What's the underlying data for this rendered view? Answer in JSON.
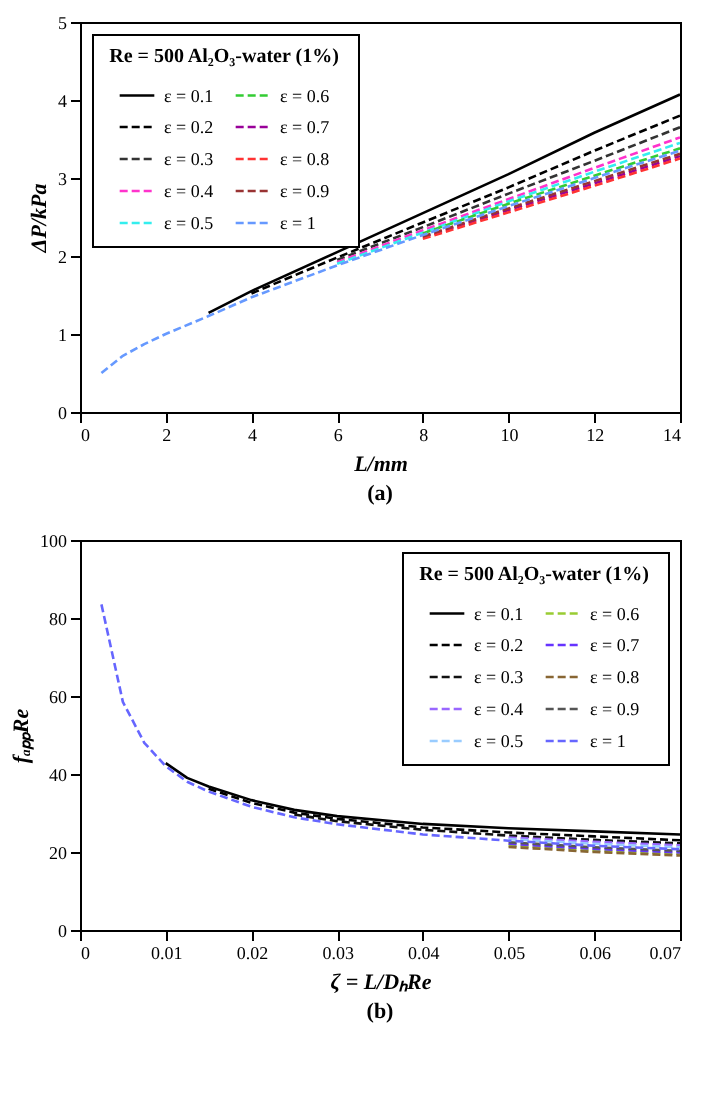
{
  "chart_data": [
    {
      "type": "line",
      "xlabel": "L/mm",
      "ylabel": "ΔP/kPa",
      "legend_title": "Re = 500   Al₂O₃-water (1%)",
      "legend": "top left",
      "annotations": [
        "(a)"
      ],
      "x": [
        0.5,
        1,
        1.5,
        2,
        3,
        4,
        6,
        8,
        10,
        12,
        14
      ],
      "xlim": [
        0,
        14
      ],
      "xticks": [
        0,
        2,
        4,
        6,
        8,
        10,
        12,
        14
      ],
      "ylim": [
        0,
        5
      ],
      "yticks": [
        0,
        1,
        2,
        3,
        4,
        5
      ],
      "series": [
        {
          "name": "ε = 0.1",
          "color": "#000000",
          "line_style": "solid",
          "values": [
            null,
            null,
            null,
            null,
            1.27,
            1.55,
            2.05,
            2.55,
            3.05,
            3.58,
            4.07
          ]
        },
        {
          "name": "ε = 0.2",
          "color": "#000000",
          "line_style": "dashed",
          "values": [
            null,
            null,
            null,
            null,
            null,
            1.52,
            1.98,
            2.43,
            2.88,
            3.35,
            3.8
          ]
        },
        {
          "name": "ε = 0.3",
          "color": "#333333",
          "line_style": "dashed",
          "values": [
            null,
            null,
            null,
            null,
            null,
            null,
            1.95,
            2.37,
            2.8,
            3.22,
            3.65
          ]
        },
        {
          "name": "ε = 0.4",
          "color": "#ff33cc",
          "line_style": "dashed",
          "values": [
            null,
            null,
            null,
            null,
            null,
            null,
            1.92,
            2.33,
            2.73,
            3.13,
            3.52
          ]
        },
        {
          "name": "ε = 0.5",
          "color": "#33eeee",
          "line_style": "dashed",
          "values": [
            null,
            null,
            null,
            null,
            null,
            null,
            1.9,
            2.3,
            2.7,
            3.08,
            3.45
          ]
        },
        {
          "name": "ε = 0.6",
          "color": "#33cc33",
          "line_style": "dashed",
          "values": [
            null,
            null,
            null,
            null,
            null,
            null,
            null,
            2.29,
            2.67,
            3.03,
            3.38
          ]
        },
        {
          "name": "ε = 0.7",
          "color": "#990099",
          "line_style": "dashed",
          "values": [
            null,
            null,
            null,
            null,
            null,
            null,
            null,
            2.24,
            2.59,
            2.93,
            3.28
          ]
        },
        {
          "name": "ε = 0.8",
          "color": "#ff3333",
          "line_style": "dashed",
          "values": [
            null,
            null,
            null,
            null,
            null,
            null,
            null,
            2.22,
            2.56,
            2.9,
            3.25
          ]
        },
        {
          "name": "ε = 0.9",
          "color": "#993333",
          "line_style": "dashed",
          "values": [
            null,
            null,
            null,
            null,
            null,
            null,
            null,
            2.25,
            2.61,
            2.96,
            3.31
          ]
        },
        {
          "name": "ε = 1",
          "color": "#6699ff",
          "line_style": "dashed",
          "values": [
            0.5,
            0.72,
            0.87,
            1.0,
            1.23,
            1.47,
            1.88,
            2.27,
            2.64,
            3.0,
            3.35
          ]
        }
      ]
    },
    {
      "type": "line",
      "xlabel": "ζ = L/DₕRe",
      "ylabel": "fₐₚₚRe",
      "legend_title": "Re = 500   Al₂O₃-water (1%)",
      "legend": "top right",
      "annotations": [
        "(b)"
      ],
      "x": [
        0.0025,
        0.005,
        0.0075,
        0.01,
        0.0125,
        0.015,
        0.02,
        0.025,
        0.03,
        0.04,
        0.05,
        0.06,
        0.07
      ],
      "xlim": [
        0,
        0.07
      ],
      "xticks": [
        0,
        0.01,
        0.02,
        0.03,
        0.04,
        0.05,
        0.06,
        0.07
      ],
      "ylim": [
        0,
        100
      ],
      "yticks": [
        0,
        20,
        40,
        60,
        80,
        100
      ],
      "series": [
        {
          "name": "ε = 0.1",
          "color": "#000000",
          "line_style": "solid",
          "values": [
            null,
            null,
            null,
            42.8,
            39,
            36.8,
            33.3,
            30.8,
            29.2,
            27.2,
            26.1,
            25.3,
            24.5
          ]
        },
        {
          "name": "ε = 0.2",
          "color": "#000000",
          "line_style": "dashed",
          "values": [
            null,
            null,
            null,
            null,
            null,
            36.2,
            32.6,
            30.1,
            28.5,
            26.3,
            25,
            24,
            23
          ]
        },
        {
          "name": "ε = 0.3",
          "color": "#111111",
          "line_style": "dashed",
          "values": [
            null,
            null,
            null,
            null,
            null,
            null,
            null,
            29.6,
            27.9,
            25.7,
            24.2,
            23.1,
            22.2
          ]
        },
        {
          "name": "ε = 0.4",
          "color": "#9966ff",
          "line_style": "dashed",
          "values": [
            null,
            null,
            null,
            null,
            null,
            null,
            null,
            null,
            null,
            null,
            23.7,
            22.6,
            21.7
          ]
        },
        {
          "name": "ε = 0.5",
          "color": "#99ccff",
          "line_style": "dashed",
          "values": [
            null,
            null,
            null,
            null,
            null,
            null,
            null,
            null,
            null,
            null,
            23.3,
            22.1,
            21.2
          ]
        },
        {
          "name": "ε = 0.6",
          "color": "#99cc33",
          "line_style": "dashed",
          "values": [
            null,
            null,
            null,
            null,
            null,
            null,
            null,
            null,
            null,
            null,
            21.7,
            20.4,
            19.5
          ]
        },
        {
          "name": "ε = 0.7",
          "color": "#6633ff",
          "line_style": "dashed",
          "values": [
            null,
            null,
            null,
            null,
            null,
            null,
            null,
            null,
            null,
            null,
            22.1,
            20.8,
            19.9
          ]
        },
        {
          "name": "ε = 0.8",
          "color": "#886633",
          "line_style": "dashed",
          "values": [
            null,
            null,
            null,
            null,
            null,
            null,
            null,
            null,
            null,
            null,
            21.3,
            20,
            19.1
          ]
        },
        {
          "name": "ε = 0.9",
          "color": "#555555",
          "line_style": "dashed",
          "values": [
            null,
            null,
            null,
            null,
            null,
            null,
            null,
            null,
            null,
            null,
            22.5,
            21.2,
            20.3
          ]
        },
        {
          "name": "ε = 1",
          "color": "#6666ff",
          "line_style": "dashed",
          "values": [
            83.5,
            58.5,
            48,
            42,
            38,
            35.5,
            31.6,
            28.9,
            27.1,
            24.5,
            22.9,
            21.6,
            20.7
          ]
        }
      ]
    }
  ]
}
